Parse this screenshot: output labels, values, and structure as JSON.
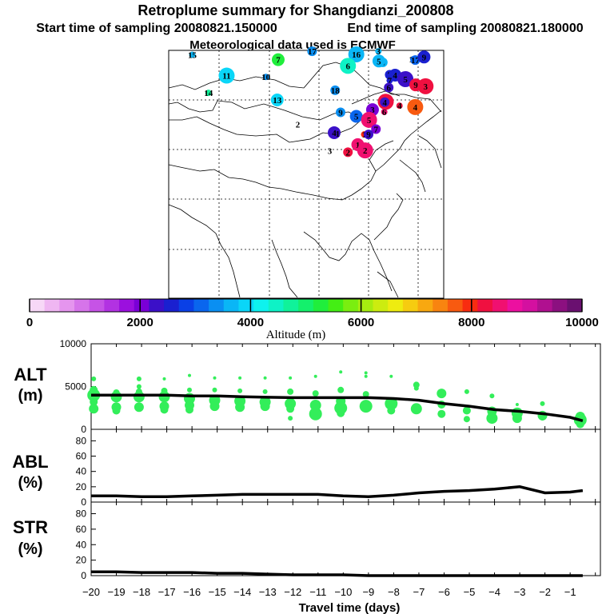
{
  "header": {
    "title": "Retroplume summary for Shangdianzi_200808",
    "start_label": "Start time of sampling 20080821.150000",
    "end_label": "End time of sampling 20080821.180000",
    "met_label": "Meteorological data used is ECMWF"
  },
  "colorbar": {
    "label": "Altitude (m)",
    "ticks": [
      "0",
      "2000",
      "4000",
      "6000",
      "8000",
      "10000"
    ],
    "colors": [
      "#f7d8f7",
      "#efb6f2",
      "#e595ee",
      "#d674ea",
      "#c653e6",
      "#b232e2",
      "#9b10de",
      "#7a00d6",
      "#3b10c8",
      "#1a20d0",
      "#0a40e6",
      "#0a66ee",
      "#0a8ff2",
      "#0ab6f6",
      "#0ad6f8",
      "#0ef2ee",
      "#0ef2c6",
      "#10f29a",
      "#14f06c",
      "#20ee3c",
      "#44ee14",
      "#7aee10",
      "#a6ec10",
      "#ccec10",
      "#eeec10",
      "#f6cc10",
      "#f8a810",
      "#f88410",
      "#f85a10",
      "#f82c10",
      "#f01040",
      "#f01070",
      "#ec10a0",
      "#d410a0",
      "#b01090",
      "#8c1080",
      "#6a1070"
    ]
  },
  "map": {
    "plume_labels": [
      {
        "t": "15",
        "lon": 70.8,
        "lat": 75.0,
        "alt": 3600
      },
      {
        "t": "17",
        "lon": 95.2,
        "lat": 75.8,
        "alt": 3500
      },
      {
        "t": "7",
        "lon": 88.3,
        "lat": 73.9,
        "alt": 5200
      },
      {
        "t": "16",
        "lon": 104.2,
        "lat": 75.1,
        "alt": 3700
      },
      {
        "t": "3",
        "lon": 108.7,
        "lat": 75.8,
        "alt": 3600
      },
      {
        "t": "6",
        "lon": 109.6,
        "lat": 73.3,
        "alt": 3600
      },
      {
        "t": "5",
        "lon": 108.8,
        "lat": 73.6,
        "alt": 3700
      },
      {
        "t": "6",
        "lon": 102.5,
        "lat": 72.5,
        "alt": 4500
      },
      {
        "t": "18",
        "lon": 115.8,
        "lat": 74.0,
        "alt": 3400
      },
      {
        "t": "17",
        "lon": 116.2,
        "lat": 73.8,
        "alt": 3000
      },
      {
        "t": "9",
        "lon": 118.0,
        "lat": 74.5,
        "alt": 2500
      },
      {
        "t": "11",
        "lon": 77.8,
        "lat": 70.3,
        "alt": 4000
      },
      {
        "t": "10",
        "lon": 85.8,
        "lat": 70.0,
        "alt": 3500
      },
      {
        "t": "7",
        "lon": 111.0,
        "lat": 70.5,
        "alt": 2600
      },
      {
        "t": "4",
        "lon": 112.1,
        "lat": 70.4,
        "alt": 2600
      },
      {
        "t": "5",
        "lon": 114.2,
        "lat": 69.5,
        "alt": 2300
      },
      {
        "t": "7",
        "lon": 111.0,
        "lat": 69.2,
        "alt": 2500
      },
      {
        "t": "6",
        "lon": 110.8,
        "lat": 67.6,
        "alt": 2200
      },
      {
        "t": "9",
        "lon": 116.3,
        "lat": 68.2,
        "alt": 8200
      },
      {
        "t": "3",
        "lon": 118.3,
        "lat": 67.9,
        "alt": 8200
      },
      {
        "t": "14",
        "lon": 74.1,
        "lat": 66.4,
        "alt": 4600
      },
      {
        "t": "18",
        "lon": 99.9,
        "lat": 67.0,
        "alt": 3300
      },
      {
        "t": "13",
        "lon": 88.1,
        "lat": 64.8,
        "alt": 4000
      },
      {
        "t": "2",
        "lon": 110.2,
        "lat": 64.4,
        "alt": 8200
      },
      {
        "t": "4",
        "lon": 113.0,
        "lat": 63.5,
        "alt": 8200
      },
      {
        "t": "4",
        "lon": 110.0,
        "lat": 64.3,
        "alt": 2200
      },
      {
        "t": "3",
        "lon": 107.5,
        "lat": 62.6,
        "alt": 2100
      },
      {
        "t": "4",
        "lon": 116.2,
        "lat": 63.2,
        "alt": 7800
      },
      {
        "t": "6",
        "lon": 109.9,
        "lat": 62.1,
        "alt": 8600
      },
      {
        "t": "9",
        "lon": 101.0,
        "lat": 62.0,
        "alt": 3300
      },
      {
        "t": "5",
        "lon": 104.2,
        "lat": 61.1,
        "alt": 3000
      },
      {
        "t": "5",
        "lon": 106.8,
        "lat": 60.3,
        "alt": 8600
      },
      {
        "t": "2",
        "lon": 92.3,
        "lat": 59.3,
        "alt": 0
      },
      {
        "t": "7",
        "lon": 108.2,
        "lat": 58.2,
        "alt": 2100
      },
      {
        "t": "4",
        "lon": 99.7,
        "lat": 57.4,
        "alt": 2400
      },
      {
        "t": "1",
        "lon": 100.4,
        "lat": 57.2,
        "alt": 0
      },
      {
        "t": "1",
        "lon": 105.8,
        "lat": 57.0,
        "alt": 8000
      },
      {
        "t": "9",
        "lon": 106.7,
        "lat": 57.0,
        "alt": 2300
      },
      {
        "t": "1",
        "lon": 104.5,
        "lat": 54.7,
        "alt": 8400
      },
      {
        "t": "2",
        "lon": 106.0,
        "lat": 53.4,
        "alt": 8600
      },
      {
        "t": "3",
        "lon": 98.8,
        "lat": 53.3,
        "alt": 0
      },
      {
        "t": "2",
        "lon": 102.5,
        "lat": 53.0,
        "alt": 8300
      }
    ]
  },
  "chart_data": [
    {
      "type": "scatter",
      "title": "ALT",
      "ylabel": "ALT (m)",
      "xlabel": "Travel time (days)",
      "ylim": [
        0,
        10000
      ],
      "yticks": [
        "0",
        "5000",
        "10000"
      ],
      "x_ticks": [
        "-20",
        "-19",
        "-18",
        "-17",
        "-16",
        "-15",
        "-14",
        "-13",
        "-12",
        "-11",
        "-10",
        "-9",
        "-8",
        "-7",
        "-6",
        "-5",
        "-4",
        "-3",
        "-2",
        "-1"
      ],
      "mean_line": {
        "x": [
          -20,
          -19,
          -18,
          -17,
          -16,
          -15,
          -14,
          -13,
          -12,
          -11,
          -10,
          -9,
          -8,
          -7,
          -6,
          -5,
          -4,
          -3,
          -2,
          -1,
          -0.5
        ],
        "y": [
          4000,
          4000,
          4000,
          4000,
          3900,
          3900,
          3800,
          3750,
          3700,
          3700,
          3700,
          3700,
          3600,
          3400,
          3000,
          2700,
          2300,
          2100,
          1800,
          1400,
          1000
        ]
      },
      "points": [
        [
          -19.9,
          5900,
          3
        ],
        [
          -19.9,
          4600,
          5
        ],
        [
          -19.9,
          4000,
          8
        ],
        [
          -19.9,
          3200,
          5
        ],
        [
          -19.9,
          2400,
          6
        ],
        [
          -19,
          4300,
          4
        ],
        [
          -19,
          3800,
          7
        ],
        [
          -19,
          2600,
          6
        ],
        [
          -19,
          2200,
          5
        ],
        [
          -18.1,
          5900,
          3
        ],
        [
          -18.1,
          5000,
          3
        ],
        [
          -18.1,
          4400,
          4
        ],
        [
          -18.1,
          3800,
          7
        ],
        [
          -18.1,
          2600,
          6
        ],
        [
          -17.1,
          5900,
          2
        ],
        [
          -17.1,
          4500,
          4
        ],
        [
          -17.1,
          3800,
          7
        ],
        [
          -17.1,
          2700,
          6
        ],
        [
          -17.1,
          2300,
          5
        ],
        [
          -16.1,
          6300,
          2
        ],
        [
          -16.1,
          4600,
          3
        ],
        [
          -16.1,
          3600,
          7
        ],
        [
          -16.1,
          2800,
          6
        ],
        [
          -16.1,
          2300,
          5
        ],
        [
          -15.1,
          6000,
          2
        ],
        [
          -15.1,
          4600,
          3
        ],
        [
          -15.1,
          3400,
          7
        ],
        [
          -15.1,
          2700,
          6
        ],
        [
          -14.1,
          6000,
          2
        ],
        [
          -14.1,
          4500,
          3
        ],
        [
          -14.1,
          3300,
          7
        ],
        [
          -14.1,
          2600,
          6
        ],
        [
          -13.1,
          6000,
          2
        ],
        [
          -13.1,
          4400,
          3
        ],
        [
          -13.1,
          3200,
          7
        ],
        [
          -13.1,
          2700,
          6
        ],
        [
          -12.1,
          6000,
          2
        ],
        [
          -12.1,
          4400,
          4
        ],
        [
          -12.1,
          3000,
          7
        ],
        [
          -12.1,
          2400,
          5
        ],
        [
          -12.1,
          1300,
          3
        ],
        [
          -11.1,
          6200,
          2
        ],
        [
          -11.1,
          4200,
          4
        ],
        [
          -11.1,
          2800,
          7
        ],
        [
          -11.1,
          1800,
          8
        ],
        [
          -10.1,
          6700,
          2
        ],
        [
          -10.1,
          4600,
          4
        ],
        [
          -10.1,
          3300,
          6
        ],
        [
          -10.1,
          2500,
          8
        ],
        [
          -10.1,
          1900,
          5
        ],
        [
          -9.1,
          6600,
          2
        ],
        [
          -9.1,
          6200,
          2
        ],
        [
          -9.1,
          4100,
          4
        ],
        [
          -9.1,
          2700,
          8
        ],
        [
          -8.1,
          6200,
          2
        ],
        [
          -8.1,
          3000,
          8
        ],
        [
          -8.1,
          2200,
          5
        ],
        [
          -7.1,
          5200,
          4
        ],
        [
          -7.1,
          4800,
          3
        ],
        [
          -7.1,
          2400,
          7
        ],
        [
          -6.1,
          4200,
          6
        ],
        [
          -6.1,
          2900,
          5
        ],
        [
          -6.1,
          1800,
          5
        ],
        [
          -5.1,
          4400,
          3
        ],
        [
          -5.1,
          2200,
          5
        ],
        [
          -5.1,
          1200,
          4
        ],
        [
          -4.1,
          3900,
          3
        ],
        [
          -4.1,
          2100,
          6
        ],
        [
          -4.1,
          1300,
          7
        ],
        [
          -3.1,
          2900,
          2
        ],
        [
          -3.1,
          1900,
          7
        ],
        [
          -3.1,
          1300,
          6
        ],
        [
          -2.1,
          3000,
          3
        ],
        [
          -2.1,
          1600,
          6
        ],
        [
          -2.1,
          1300,
          3
        ],
        [
          -0.6,
          1100,
          8
        ],
        [
          -0.6,
          1500,
          6
        ],
        [
          -0.6,
          600,
          5
        ]
      ]
    },
    {
      "type": "line",
      "title": "ABL",
      "ylabel": "ABL (%)",
      "ylim": [
        0,
        90
      ],
      "yticks": [
        "0",
        "20",
        "40",
        "60",
        "80"
      ],
      "x": [
        -20,
        -19,
        -18,
        -17,
        -16,
        -15,
        -14,
        -13,
        -12,
        -11,
        -10,
        -9,
        -8,
        -7,
        -6,
        -5,
        -4,
        -3,
        -2,
        -1,
        -0.5
      ],
      "y": [
        8,
        8,
        7,
        7,
        8,
        9,
        10,
        10,
        10,
        10,
        8,
        7,
        9,
        12,
        14,
        15,
        17,
        20,
        12,
        13,
        15
      ]
    },
    {
      "type": "line",
      "title": "STR",
      "ylabel": "STR (%)",
      "ylim": [
        0,
        90
      ],
      "yticks": [
        "0",
        "20",
        "40",
        "60",
        "80"
      ],
      "x": [
        -20,
        -19,
        -18,
        -17,
        -16,
        -15,
        -14,
        -13,
        -12,
        -11,
        -10,
        -9,
        -8,
        -7,
        -6,
        -5,
        -4,
        -3,
        -2,
        -1,
        -0.5
      ],
      "y": [
        5,
        5,
        4,
        4,
        4,
        3,
        3,
        2,
        1,
        1,
        1,
        0,
        0,
        0,
        0,
        0,
        0,
        0,
        0,
        0,
        0
      ]
    }
  ],
  "panels": {
    "alt_label": "ALT",
    "alt_unit": "(m)",
    "abl_label": "ABL",
    "abl_unit": "(%)",
    "str_label": "STR",
    "str_unit": "(%)"
  }
}
